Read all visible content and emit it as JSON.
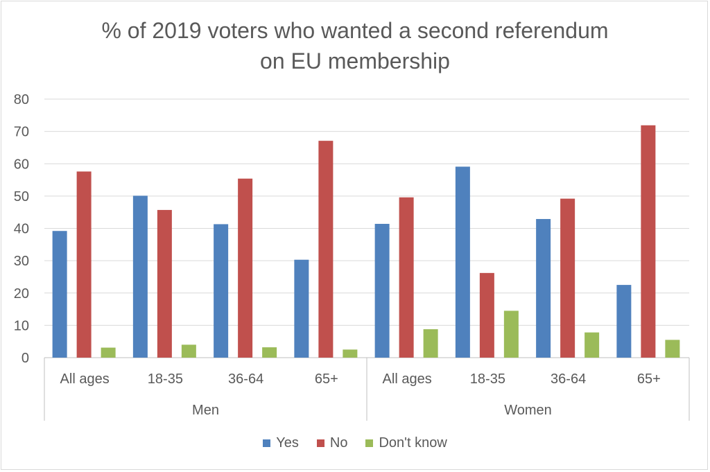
{
  "chart_data": {
    "type": "bar",
    "title_lines": [
      "% of 2019 voters who wanted a second referendum",
      "on EU membership"
    ],
    "groups": [
      {
        "label": "Men",
        "categories": [
          "All ages",
          "18-35",
          "36-64",
          "65+"
        ]
      },
      {
        "label": "Women",
        "categories": [
          "All ages",
          "18-35",
          "36-64",
          "65+"
        ]
      }
    ],
    "series": [
      {
        "name": "Yes",
        "color": "#4f81bd",
        "values": [
          39.2,
          50.1,
          41.3,
          30.3,
          41.4,
          59.1,
          42.9,
          22.5
        ]
      },
      {
        "name": "No",
        "color": "#c0504d",
        "values": [
          57.6,
          45.7,
          55.4,
          67.1,
          49.6,
          26.2,
          49.2,
          71.9
        ]
      },
      {
        "name": "Don't know",
        "color": "#9bbb59",
        "values": [
          3.1,
          4.0,
          3.2,
          2.5,
          8.8,
          14.5,
          7.8,
          5.5
        ]
      }
    ],
    "ylim": [
      0,
      80
    ],
    "yticks": [
      0,
      10,
      20,
      30,
      40,
      50,
      60,
      70,
      80
    ],
    "grid": true,
    "legend": "bottom"
  }
}
